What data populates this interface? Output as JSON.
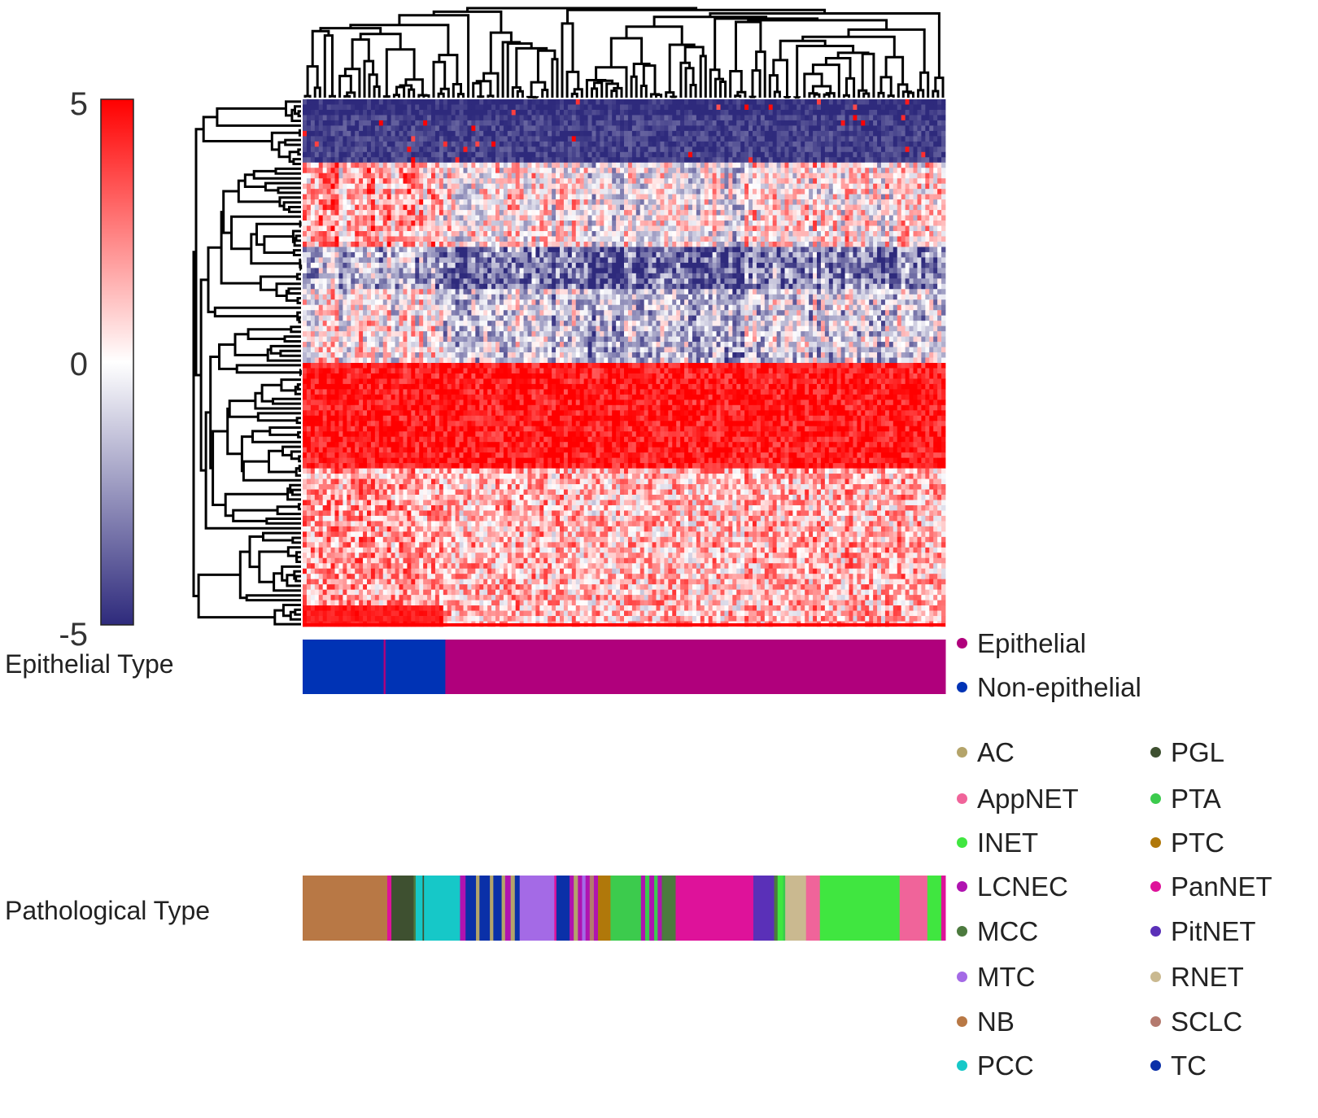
{
  "chart_data": {
    "type": "heatmap",
    "title": "",
    "description_rows": "hierarchically clustered genes (rows) x samples (columns)",
    "colorbar": {
      "min": -5,
      "max": 5,
      "ticks": [
        {
          "value": 5,
          "label": "5"
        },
        {
          "value": 0,
          "label": "0"
        },
        {
          "value": -5,
          "label": "-5"
        }
      ],
      "low_color": "#2e2a7c",
      "mid_color": "#ffffff",
      "high_color": "#ff0000"
    },
    "row_band_pattern": [
      {
        "rows": [
          0,
          3
        ],
        "mean": -5
      },
      {
        "rows": [
          3,
          12
        ],
        "mean": -4.5
      },
      {
        "rows": [
          12,
          28
        ],
        "mean": 0.5
      },
      {
        "rows": [
          28,
          36
        ],
        "mean": -3
      },
      {
        "rows": [
          36,
          50
        ],
        "mean": -1
      },
      {
        "rows": [
          50,
          70
        ],
        "mean": 4.5
      },
      {
        "rows": [
          70,
          100
        ],
        "mean": 1.5
      }
    ],
    "annotation_tracks": [
      {
        "name": "Epithelial Type",
        "segments": [
          {
            "category": "Non-epithelial",
            "width": 12.6
          },
          {
            "category": "Epithelial",
            "width": 0.3
          },
          {
            "category": "Non-epithelial",
            "width": 9.3
          },
          {
            "category": "Epithelial",
            "width": 77.8
          }
        ]
      },
      {
        "name": "Pathological Type",
        "segments": [
          {
            "category": "NB",
            "width": 12.2
          },
          {
            "category": "PanNET",
            "width": 0.6
          },
          {
            "category": "PGL",
            "width": 3.2
          },
          {
            "category": "MCC",
            "width": 0.3
          },
          {
            "category": "PCC",
            "width": 1.0
          },
          {
            "category": "PGL",
            "width": 0.2
          },
          {
            "category": "PCC",
            "width": 5.2
          },
          {
            "category": "LCNEC",
            "width": 0.8
          },
          {
            "category": "TC",
            "width": 1.5
          },
          {
            "category": "AC",
            "width": 0.5
          },
          {
            "category": "TC",
            "width": 1.5
          },
          {
            "category": "AC",
            "width": 0.5
          },
          {
            "category": "TC",
            "width": 1.2
          },
          {
            "category": "AC",
            "width": 0.5
          },
          {
            "category": "LCNEC",
            "width": 0.8
          },
          {
            "category": "AC",
            "width": 0.6
          },
          {
            "category": "TC",
            "width": 0.7
          },
          {
            "category": "MTC",
            "width": 5.0
          },
          {
            "category": "PanNET",
            "width": 0.3
          },
          {
            "category": "TC",
            "width": 1.9
          },
          {
            "category": "LCNEC",
            "width": 0.6
          },
          {
            "category": "AC",
            "width": 0.6
          },
          {
            "category": "LCNEC",
            "width": 0.6
          },
          {
            "category": "MTC",
            "width": 0.5
          },
          {
            "category": "LCNEC",
            "width": 0.6
          },
          {
            "category": "SCLC",
            "width": 0.6
          },
          {
            "category": "LCNEC",
            "width": 0.6
          },
          {
            "category": "PTC",
            "width": 1.8
          },
          {
            "category": "PTA",
            "width": 4.4
          },
          {
            "category": "LCNEC",
            "width": 0.6
          },
          {
            "category": "PTA",
            "width": 0.6
          },
          {
            "category": "LCNEC",
            "width": 0.7
          },
          {
            "category": "PTA",
            "width": 0.5
          },
          {
            "category": "LCNEC",
            "width": 0.6
          },
          {
            "category": "MCC",
            "width": 2.0
          },
          {
            "category": "PanNET",
            "width": 11.2
          },
          {
            "category": "PitNET",
            "width": 3.0
          },
          {
            "category": "MCC",
            "width": 0.5
          },
          {
            "category": "INET",
            "width": 0.8
          },
          {
            "category": "PTA",
            "width": 0.3
          },
          {
            "category": "RNET",
            "width": 3.0
          },
          {
            "category": "AppNET",
            "width": 2.0
          },
          {
            "category": "INET",
            "width": 11.5
          },
          {
            "category": "AppNET",
            "width": 4.0
          },
          {
            "category": "INET",
            "width": 2.0
          },
          {
            "category": "PanNET",
            "width": 0.6
          }
        ]
      }
    ]
  },
  "labels": {
    "epithelial_track": "Epithelial Type",
    "pathological_track": "Pathological Type"
  },
  "legend_epithelial": [
    {
      "label": "Epithelial",
      "color": "#b0007c"
    },
    {
      "label": "Non-epithelial",
      "color": "#0033b5"
    }
  ],
  "legend_pathological": [
    {
      "label": "AC",
      "color": "#b4a46a"
    },
    {
      "label": "AppNET",
      "color": "#f0649a"
    },
    {
      "label": "INET",
      "color": "#40e640"
    },
    {
      "label": "LCNEC",
      "color": "#b013b0"
    },
    {
      "label": "MCC",
      "color": "#4c7a3e"
    },
    {
      "label": "MTC",
      "color": "#a46ae6"
    },
    {
      "label": "NB",
      "color": "#b87845"
    },
    {
      "label": "PCC",
      "color": "#16c8c8"
    },
    {
      "label": "PGL",
      "color": "#3e5030"
    },
    {
      "label": "PTA",
      "color": "#3ccb4d"
    },
    {
      "label": "PTC",
      "color": "#b0780a"
    },
    {
      "label": "PanNET",
      "color": "#de129a"
    },
    {
      "label": "PitNET",
      "color": "#5a30b8"
    },
    {
      "label": "RNET",
      "color": "#cab990"
    },
    {
      "label": "SCLC",
      "color": "#b47a6e"
    },
    {
      "label": "TC",
      "color": "#0a30a8"
    }
  ]
}
